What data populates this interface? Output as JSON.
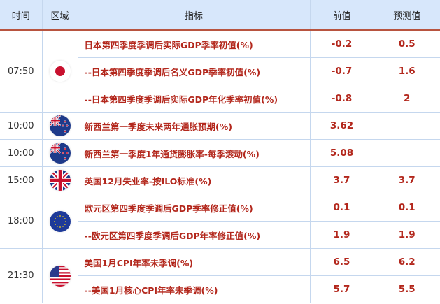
{
  "headers": {
    "time": "时间",
    "region": "区域",
    "indicator": "指标",
    "previous": "前值",
    "forecast": "预测值"
  },
  "colors": {
    "header_bg": "#d7e7fb",
    "accent_text": "#b3271c",
    "header_border": "#b8543f"
  },
  "groups": [
    {
      "time": "07:50",
      "flag": "japan",
      "rows": [
        {
          "indicator": "日本第四季度季调后实际GDP季率初值(%)",
          "previous": "-0.2",
          "forecast": "0.5"
        },
        {
          "indicator": "--日本第四季度季调后名义GDP季率初值(%)",
          "previous": "-0.7",
          "forecast": "1.6"
        },
        {
          "indicator": "--日本第四季度季调后实际GDP年化季率初值(%)",
          "previous": "-0.8",
          "forecast": "2"
        }
      ]
    },
    {
      "time": "10:00",
      "flag": "new-zealand",
      "rows": [
        {
          "indicator": "新西兰第一季度未来两年通胀预期(%)",
          "previous": "3.62",
          "forecast": ""
        }
      ]
    },
    {
      "time": "10:00",
      "flag": "new-zealand",
      "rows": [
        {
          "indicator": "新西兰第一季度1年通货膨胀率-每季滚动(%)",
          "previous": "5.08",
          "forecast": ""
        }
      ]
    },
    {
      "time": "15:00",
      "flag": "uk",
      "rows": [
        {
          "indicator": "英国12月失业率-按ILO标准(%)",
          "previous": "3.7",
          "forecast": "3.7"
        }
      ]
    },
    {
      "time": "18:00",
      "flag": "eu",
      "rows": [
        {
          "indicator": "欧元区第四季度季调后GDP季率修正值(%)",
          "previous": "0.1",
          "forecast": "0.1"
        },
        {
          "indicator": "--欧元区第四季度季调后GDP年率修正值(%)",
          "previous": "1.9",
          "forecast": "1.9"
        }
      ]
    },
    {
      "time": "21:30",
      "flag": "usa",
      "rows": [
        {
          "indicator": "美国1月CPI年率未季调(%)",
          "previous": "6.5",
          "forecast": "6.2"
        },
        {
          "indicator": "--美国1月核心CPI年率未季调(%)",
          "previous": "5.7",
          "forecast": "5.5"
        }
      ]
    }
  ]
}
